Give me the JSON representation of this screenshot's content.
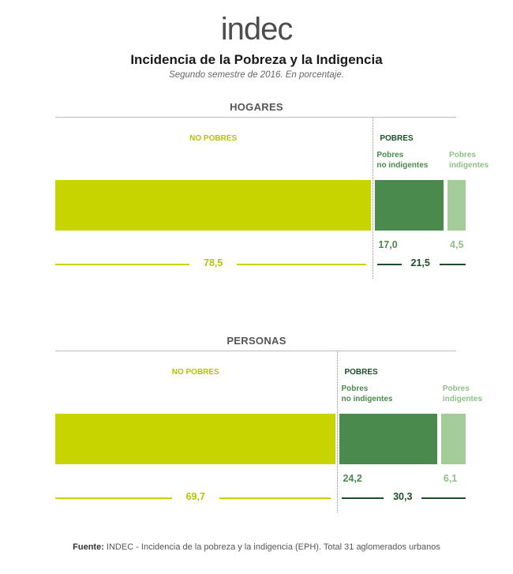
{
  "logo_text": "indec",
  "title": "Incidencia de la Pobreza y la Indigencia",
  "subtitle": "Segundo semestre de 2016. En porcentaje.",
  "labels": {
    "no_pobres": "NO POBRES",
    "pobres": "POBRES",
    "pobres_no_indigentes": "Pobres no indigentes",
    "pobres_indigentes": "Pobres indigentes"
  },
  "colors": {
    "no_pobres": "#c8d400",
    "pobres_no_indigentes": "#4a8a4d",
    "pobres_indigentes": "#a3cc99",
    "pobres_total": "#1e4d2b"
  },
  "chart_data": [
    {
      "type": "bar",
      "orientation": "horizontal-stacked",
      "title": "HOGARES",
      "series": [
        {
          "name": "NO POBRES",
          "value": 78.5,
          "label": "78,5"
        },
        {
          "name": "Pobres no indigentes",
          "value": 17.0,
          "label": "17,0"
        },
        {
          "name": "Pobres indigentes",
          "value": 4.5,
          "label": "4,5"
        }
      ],
      "totals": {
        "no_pobres": "78,5",
        "pobres": "21,5"
      },
      "pobres_total": 21.5
    },
    {
      "type": "bar",
      "orientation": "horizontal-stacked",
      "title": "PERSONAS",
      "series": [
        {
          "name": "NO POBRES",
          "value": 69.7,
          "label": "69,7"
        },
        {
          "name": "Pobres no indigentes",
          "value": 24.2,
          "label": "24,2"
        },
        {
          "name": "Pobres indigentes",
          "value": 6.1,
          "label": "6,1"
        }
      ],
      "totals": {
        "no_pobres": "69,7",
        "pobres": "30,3"
      },
      "pobres_total": 30.3
    }
  ],
  "source": {
    "prefix": "Fuente:",
    "text": " INDEC - Incidencia de la pobreza y la indigencia (EPH). Total 31 aglomerados urbanos"
  }
}
